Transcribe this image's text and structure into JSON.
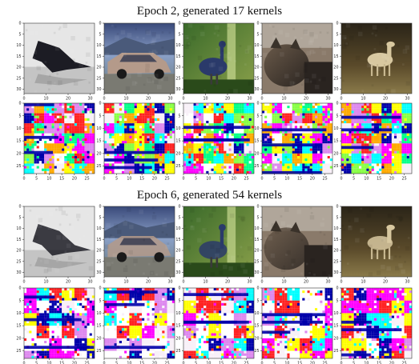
{
  "sections": [
    {
      "title": "Epoch 2, generated 17 kernels",
      "images": [
        {
          "subject": "airplane",
          "x_ticks": [
            "0",
            "10",
            "20",
            "30"
          ],
          "y_ticks": [
            "0",
            "5",
            "10",
            "15",
            "20",
            "25",
            "30"
          ]
        },
        {
          "subject": "car",
          "x_ticks": [
            "0",
            "10",
            "20",
            "30"
          ],
          "y_ticks": [
            "0",
            "5",
            "10",
            "15",
            "20",
            "25",
            "30"
          ]
        },
        {
          "subject": "bird",
          "x_ticks": [
            "0",
            "10",
            "20",
            "30"
          ],
          "y_ticks": [
            "0",
            "5",
            "10",
            "15",
            "20",
            "25",
            "30"
          ]
        },
        {
          "subject": "cat",
          "x_ticks": [
            "0",
            "10",
            "20",
            "30"
          ],
          "y_ticks": [
            "0",
            "5",
            "10",
            "15",
            "20",
            "25",
            "30"
          ]
        },
        {
          "subject": "deer",
          "x_ticks": [
            "0",
            "10",
            "20",
            "30"
          ],
          "y_ticks": [
            "0",
            "5",
            "10",
            "15",
            "20",
            "25",
            "30"
          ]
        }
      ],
      "kernel_maps": {
        "x_ticks": [
          "0",
          "5",
          "10",
          "15",
          "20",
          "25"
        ],
        "y_ticks": [
          "0",
          "5",
          "10",
          "15",
          "20",
          "25"
        ],
        "palette": [
          "#f8f0f8",
          "#ffffff",
          "#ff00ff",
          "#dd88ee",
          "#ffff00",
          "#00ff88",
          "#00ffff",
          "#ff2222",
          "#ffaa00",
          "#0000aa",
          "#88ff44",
          "#220044"
        ]
      }
    },
    {
      "title": "Epoch 6, generated 54 kernels",
      "images": [
        {
          "subject": "airplane",
          "x_ticks": [
            "0",
            "10",
            "20",
            "30"
          ],
          "y_ticks": [
            "0",
            "5",
            "10",
            "15",
            "20",
            "25",
            "30"
          ]
        },
        {
          "subject": "car",
          "x_ticks": [
            "0",
            "10",
            "20",
            "30"
          ],
          "y_ticks": [
            "0",
            "5",
            "10",
            "15",
            "20",
            "25",
            "30"
          ]
        },
        {
          "subject": "bird",
          "x_ticks": [
            "0",
            "10",
            "20",
            "30"
          ],
          "y_ticks": [
            "0",
            "5",
            "10",
            "15",
            "20",
            "25",
            "30"
          ]
        },
        {
          "subject": "cat",
          "x_ticks": [
            "0",
            "10",
            "20",
            "30"
          ],
          "y_ticks": [
            "0",
            "5",
            "10",
            "15",
            "20",
            "25",
            "30"
          ]
        },
        {
          "subject": "deer",
          "x_ticks": [
            "0",
            "10",
            "20",
            "30"
          ],
          "y_ticks": [
            "0",
            "5",
            "10",
            "15",
            "20",
            "25",
            "30"
          ]
        }
      ],
      "kernel_maps": {
        "x_ticks": [
          "0",
          "5",
          "10",
          "15",
          "20",
          "25"
        ],
        "y_ticks": [
          "0",
          "5",
          "10",
          "15",
          "20",
          "25"
        ],
        "palette": [
          "#f8f0f8",
          "#ffffff",
          "#ff00ff",
          "#dd88ee",
          "#ffff00",
          "#00ff88",
          "#00ffff",
          "#ff2222",
          "#ffaa00",
          "#0000aa",
          "#88ff44",
          "#220044"
        ]
      }
    }
  ]
}
